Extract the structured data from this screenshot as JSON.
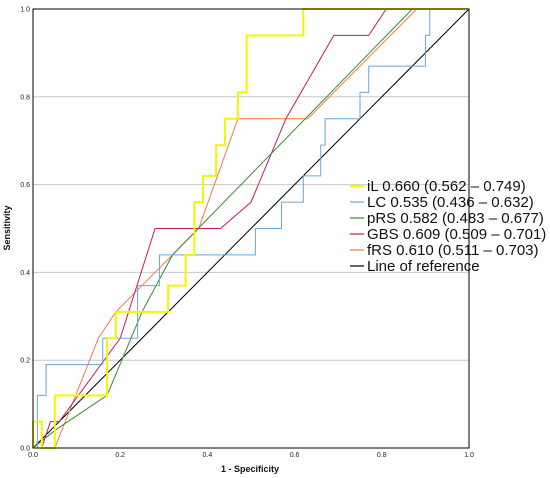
{
  "chart_data": {
    "type": "line",
    "title": "",
    "xlabel": "1 - Specificity",
    "ylabel": "Sensitivity",
    "xlim": [
      0,
      1
    ],
    "ylim": [
      0,
      1
    ],
    "xticks": [
      "0.0",
      "0.2",
      "0.4",
      "0.6",
      "0.8",
      "1.0"
    ],
    "yticks": [
      "0.0",
      "0.2",
      "0.4",
      "0.6",
      "0.8",
      "1.0"
    ],
    "grid": "horizontal",
    "legend_position": "right",
    "series": [
      {
        "name": "iL 0.660 (0.562 – 0.749)",
        "color": "#f5f500",
        "width": 2,
        "points": [
          [
            0,
            0
          ],
          [
            0,
            0.06
          ],
          [
            0.02,
            0.06
          ],
          [
            0.02,
            0.0
          ],
          [
            0.05,
            0.0
          ],
          [
            0.05,
            0.12
          ],
          [
            0.17,
            0.12
          ],
          [
            0.17,
            0.25
          ],
          [
            0.19,
            0.25
          ],
          [
            0.19,
            0.31
          ],
          [
            0.31,
            0.31
          ],
          [
            0.31,
            0.37
          ],
          [
            0.35,
            0.37
          ],
          [
            0.35,
            0.44
          ],
          [
            0.37,
            0.44
          ],
          [
            0.37,
            0.56
          ],
          [
            0.39,
            0.56
          ],
          [
            0.39,
            0.62
          ],
          [
            0.42,
            0.62
          ],
          [
            0.42,
            0.69
          ],
          [
            0.44,
            0.69
          ],
          [
            0.44,
            0.75
          ],
          [
            0.47,
            0.75
          ],
          [
            0.47,
            0.81
          ],
          [
            0.49,
            0.81
          ],
          [
            0.49,
            0.94
          ],
          [
            0.62,
            0.94
          ],
          [
            0.62,
            1.0
          ],
          [
            1.0,
            1.0
          ]
        ]
      },
      {
        "name": "LC 0.535 (0.436 – 0.632)",
        "color": "#6aa6d8",
        "width": 1,
        "points": [
          [
            0,
            0
          ],
          [
            0.01,
            0.0
          ],
          [
            0.01,
            0.12
          ],
          [
            0.03,
            0.12
          ],
          [
            0.03,
            0.19
          ],
          [
            0.16,
            0.19
          ],
          [
            0.16,
            0.25
          ],
          [
            0.24,
            0.25
          ],
          [
            0.24,
            0.37
          ],
          [
            0.29,
            0.37
          ],
          [
            0.29,
            0.44
          ],
          [
            0.51,
            0.44
          ],
          [
            0.51,
            0.5
          ],
          [
            0.57,
            0.5
          ],
          [
            0.57,
            0.56
          ],
          [
            0.62,
            0.56
          ],
          [
            0.62,
            0.62
          ],
          [
            0.66,
            0.62
          ],
          [
            0.66,
            0.69
          ],
          [
            0.67,
            0.69
          ],
          [
            0.67,
            0.75
          ],
          [
            0.75,
            0.75
          ],
          [
            0.75,
            0.81
          ],
          [
            0.77,
            0.81
          ],
          [
            0.77,
            0.87
          ],
          [
            0.9,
            0.87
          ],
          [
            0.9,
            0.94
          ],
          [
            0.91,
            0.94
          ],
          [
            0.91,
            1.0
          ],
          [
            1.0,
            1.0
          ]
        ]
      },
      {
        "name": "pRS 0.582 (0.483 – 0.677)",
        "color": "#3b8a2e",
        "width": 1,
        "points": [
          [
            0,
            0
          ],
          [
            0.05,
            0.04
          ],
          [
            0.17,
            0.12
          ],
          [
            0.25,
            0.31
          ],
          [
            0.32,
            0.44
          ],
          [
            0.87,
            1.0
          ],
          [
            1.0,
            1.0
          ]
        ]
      },
      {
        "name": "GBS 0.609 (0.509 – 0.701)",
        "color": "#c8195e",
        "width": 1,
        "points": [
          [
            0.02,
            0.0
          ],
          [
            0.04,
            0.06
          ],
          [
            0.06,
            0.06
          ],
          [
            0.2,
            0.25
          ],
          [
            0.28,
            0.5
          ],
          [
            0.43,
            0.5
          ],
          [
            0.5,
            0.56
          ],
          [
            0.58,
            0.75
          ],
          [
            0.69,
            0.94
          ],
          [
            0.77,
            0.94
          ],
          [
            0.81,
            1.0
          ],
          [
            1.0,
            1.0
          ]
        ]
      },
      {
        "name": "fRS 0.610 (0.511 – 0.703)",
        "color": "#f07a4e",
        "width": 1,
        "points": [
          [
            0.05,
            0.0
          ],
          [
            0.15,
            0.25
          ],
          [
            0.19,
            0.31
          ],
          [
            0.25,
            0.37
          ],
          [
            0.38,
            0.5
          ],
          [
            0.47,
            0.75
          ],
          [
            0.63,
            0.75
          ],
          [
            0.82,
            0.94
          ],
          [
            0.88,
            1.0
          ],
          [
            1.0,
            1.0
          ]
        ]
      },
      {
        "name": "Line of reference",
        "color": "#000000",
        "width": 1,
        "points": [
          [
            0,
            0
          ],
          [
            1,
            1
          ]
        ]
      }
    ]
  }
}
